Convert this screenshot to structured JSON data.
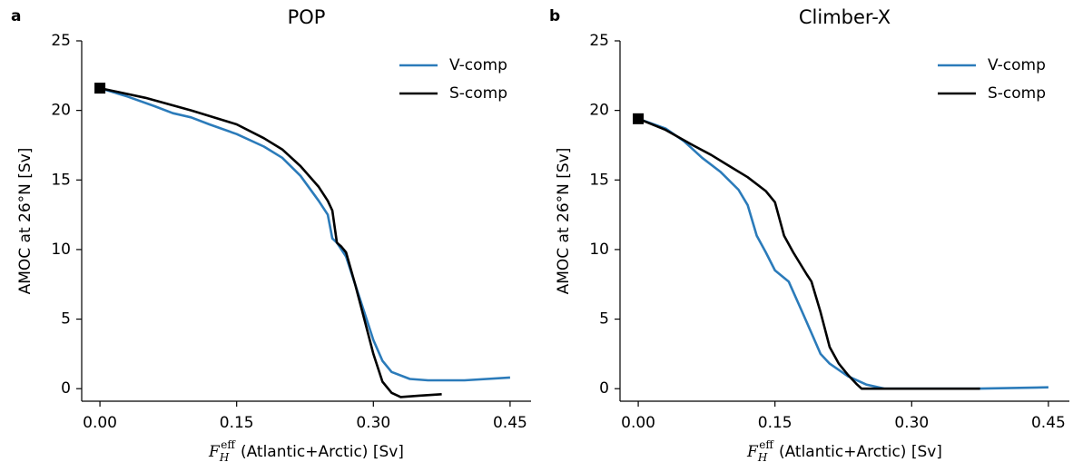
{
  "chart_data": [
    {
      "type": "line",
      "panel_label": "a",
      "title": "POP",
      "ylabel": "AMOC at 26°N [Sv]",
      "xlabel": {
        "symbol": "F",
        "sub": "H",
        "sup": "eff",
        "text": "(Atlantic+Arctic) [Sv]"
      },
      "xlim": [
        -0.02,
        0.473
      ],
      "ylim": [
        -0.9,
        25
      ],
      "xticks": [
        {
          "value": 0,
          "label": "0.00"
        },
        {
          "value": 0.15,
          "label": "0.15"
        },
        {
          "value": 0.3,
          "label": "0.30"
        },
        {
          "value": 0.45,
          "label": "0.45"
        }
      ],
      "yticks": [
        0,
        5,
        10,
        15,
        20,
        25
      ],
      "legend": "upper right",
      "start_marker": {
        "x": 0,
        "y": 21.6,
        "color": "#000000"
      },
      "series": [
        {
          "name": "V-comp",
          "color": "#2b7bba",
          "x": [
            0,
            0.03,
            0.06,
            0.08,
            0.1,
            0.12,
            0.15,
            0.18,
            0.2,
            0.22,
            0.24,
            0.25,
            0.255,
            0.26,
            0.27,
            0.28,
            0.29,
            0.3,
            0.31,
            0.32,
            0.34,
            0.36,
            0.4,
            0.45
          ],
          "values": [
            21.6,
            21.0,
            20.3,
            19.8,
            19.5,
            19.0,
            18.3,
            17.4,
            16.6,
            15.3,
            13.5,
            12.5,
            10.8,
            10.5,
            9.5,
            7.5,
            5.5,
            3.5,
            2.0,
            1.2,
            0.7,
            0.6,
            0.6,
            0.8
          ]
        },
        {
          "name": "S-comp",
          "color": "#000000",
          "x": [
            0,
            0.05,
            0.1,
            0.15,
            0.18,
            0.2,
            0.22,
            0.24,
            0.25,
            0.255,
            0.26,
            0.265,
            0.27,
            0.28,
            0.29,
            0.3,
            0.31,
            0.32,
            0.33,
            0.35,
            0.375
          ],
          "values": [
            21.6,
            20.9,
            20.0,
            19.0,
            18.0,
            17.2,
            16.0,
            14.5,
            13.5,
            12.8,
            10.5,
            10.2,
            9.8,
            7.5,
            5.0,
            2.5,
            0.5,
            -0.3,
            -0.6,
            -0.5,
            -0.4
          ]
        }
      ]
    },
    {
      "type": "line",
      "panel_label": "b",
      "title": "Climber-X",
      "ylabel": "AMOC at 26°N [Sv]",
      "xlabel": {
        "symbol": "F",
        "sub": "H",
        "sup": "eff",
        "text": "(Atlantic+Arctic) [Sv]"
      },
      "xlim": [
        -0.02,
        0.473
      ],
      "ylim": [
        -0.9,
        25
      ],
      "xticks": [
        {
          "value": 0,
          "label": "0.00"
        },
        {
          "value": 0.15,
          "label": "0.15"
        },
        {
          "value": 0.3,
          "label": "0.30"
        },
        {
          "value": 0.45,
          "label": "0.45"
        }
      ],
      "yticks": [
        0,
        5,
        10,
        15,
        20,
        25
      ],
      "legend": "upper right",
      "start_marker": {
        "x": 0,
        "y": 19.4,
        "color": "#000000"
      },
      "series": [
        {
          "name": "V-comp",
          "color": "#2b7bba",
          "x": [
            0,
            0.03,
            0.05,
            0.07,
            0.09,
            0.11,
            0.12,
            0.13,
            0.14,
            0.15,
            0.165,
            0.18,
            0.19,
            0.2,
            0.21,
            0.23,
            0.25,
            0.27,
            0.3,
            0.37,
            0.45
          ],
          "values": [
            19.4,
            18.7,
            17.8,
            16.6,
            15.6,
            14.3,
            13.2,
            11.0,
            9.8,
            8.5,
            7.7,
            5.5,
            4.0,
            2.5,
            1.8,
            0.9,
            0.3,
            0.0,
            0.0,
            0.0,
            0.1
          ]
        },
        {
          "name": "S-comp",
          "color": "#000000",
          "x": [
            0,
            0.03,
            0.06,
            0.08,
            0.1,
            0.12,
            0.14,
            0.15,
            0.16,
            0.17,
            0.185,
            0.19,
            0.2,
            0.21,
            0.22,
            0.23,
            0.24,
            0.245,
            0.3,
            0.375
          ],
          "values": [
            19.4,
            18.6,
            17.5,
            16.8,
            16.0,
            15.2,
            14.2,
            13.4,
            11.0,
            9.8,
            8.2,
            7.7,
            5.5,
            3.0,
            1.8,
            1.0,
            0.3,
            0.0,
            0.0,
            0.0
          ]
        }
      ]
    }
  ]
}
